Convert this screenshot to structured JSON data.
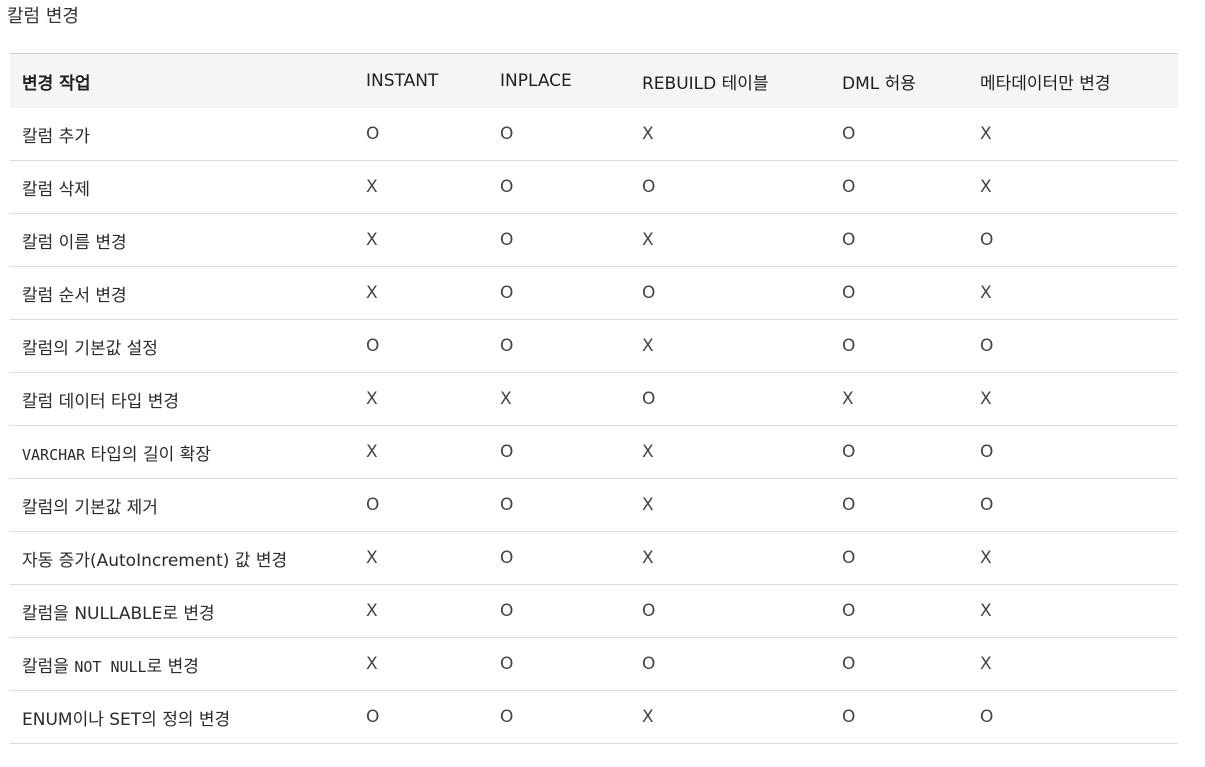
{
  "title": "칼럼 변경",
  "table": {
    "headers": [
      "변경 작업",
      "INSTANT",
      "INPLACE",
      "REBUILD 테이블",
      "DML 허용",
      "메타데이터만 변경"
    ],
    "rows": [
      {
        "operation": "칼럼 추가",
        "values": [
          "O",
          "O",
          "X",
          "O",
          "X"
        ]
      },
      {
        "operation": "칼럼 삭제",
        "values": [
          "X",
          "O",
          "O",
          "O",
          "X"
        ]
      },
      {
        "operation": "칼럼 이름 변경",
        "values": [
          "X",
          "O",
          "X",
          "O",
          "O"
        ]
      },
      {
        "operation": "칼럼 순서 변경",
        "values": [
          "X",
          "O",
          "O",
          "O",
          "X"
        ]
      },
      {
        "operation": "칼럼의 기본값 설정",
        "values": [
          "O",
          "O",
          "X",
          "O",
          "O"
        ]
      },
      {
        "operation": "칼럼 데이터 타입 변경",
        "values": [
          "X",
          "X",
          "O",
          "X",
          "X"
        ]
      },
      {
        "operation_code": "VARCHAR",
        "operation_rest": " 타입의 길이 확장",
        "values": [
          "X",
          "O",
          "X",
          "O",
          "O"
        ]
      },
      {
        "operation": "칼럼의 기본값 제거",
        "values": [
          "O",
          "O",
          "X",
          "O",
          "O"
        ]
      },
      {
        "operation": "자동 증가(AutoIncrement) 값 변경",
        "values": [
          "X",
          "O",
          "X",
          "O",
          "X"
        ]
      },
      {
        "operation": "칼럼을 NULLABLE로 변경",
        "values": [
          "X",
          "O",
          "O",
          "O",
          "X"
        ]
      },
      {
        "operation_prefix": "칼럼을 ",
        "operation_code": "NOT NULL",
        "operation_rest": "로 변경",
        "values": [
          "X",
          "O",
          "O",
          "O",
          "X"
        ]
      },
      {
        "operation": "ENUM이나 SET의 정의 변경",
        "values": [
          "O",
          "O",
          "X",
          "O",
          "O"
        ]
      }
    ]
  }
}
